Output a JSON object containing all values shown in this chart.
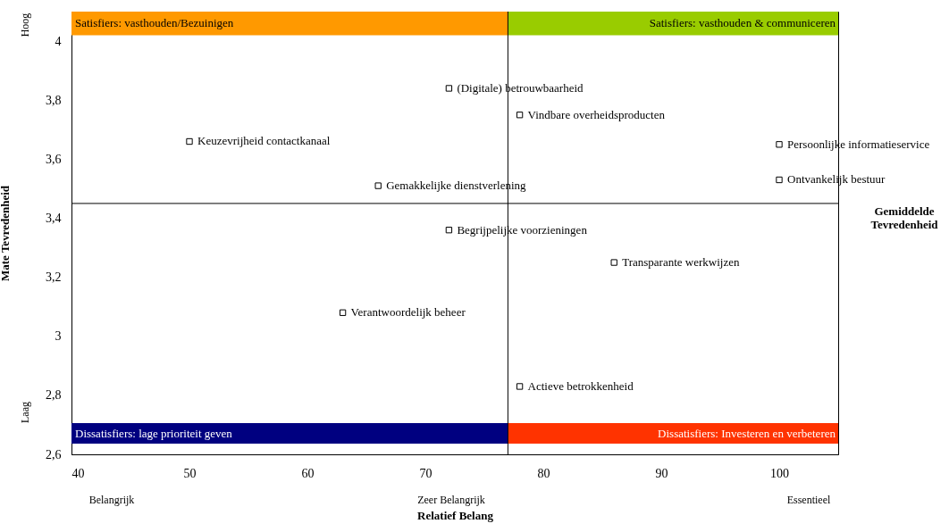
{
  "chart_data": {
    "type": "scatter",
    "xlabel": "Relatief Belang",
    "ylabel": "Mate Tevredenheid",
    "x": [
      72,
      78,
      50,
      100,
      100,
      66,
      72,
      86,
      63,
      78
    ],
    "values": [
      3.84,
      3.75,
      3.66,
      3.65,
      3.53,
      3.51,
      3.36,
      3.25,
      3.08,
      2.83
    ],
    "value_labels": [
      "(Digitale) betrouwbaarheid",
      "Vindbare overheidsproducten",
      "Keuzevrijheid contactkanaal",
      "Persoonlijke informatieservice",
      "Ontvankelijk bestuur",
      "Gemakkelijke dienstverlening",
      "Begrijpelijke voorzieningen",
      "Transparante werkwijzen",
      "Verantwoordelijk beheer",
      "Actieve betrokkenheid"
    ],
    "color": "#000000",
    "marker": "square",
    "xlim": [
      40,
      105
    ],
    "xticks": [
      40,
      50,
      60,
      70,
      80,
      90,
      100
    ],
    "ylim": [
      2.6,
      4.1
    ],
    "yticks": [
      {
        "value": 2.6,
        "label": "2,6"
      },
      {
        "value": 2.8,
        "label": "2,8"
      },
      3,
      {
        "value": 3.2,
        "label": "3,2"
      },
      {
        "value": 3.4,
        "label": "3,4"
      },
      {
        "value": 3.6,
        "label": "3,6"
      },
      {
        "value": 3.8,
        "label": "3,8"
      },
      4
    ],
    "grid": false,
    "ref_lines": [
      {
        "axis": "x",
        "value": 77,
        "label": null
      },
      {
        "axis": "y",
        "value": 3.45,
        "label": "Gemiddelde Tevredenheid"
      }
    ],
    "bands": [
      {
        "axis": "y",
        "from": 4.02,
        "to": 4.1,
        "label": "Satisfiers: vasthouden/Bezuinigen",
        "color": "#ff9900"
      },
      {
        "axis": "y",
        "from": 4.02,
        "to": 4.1,
        "label": "Satisfiers: vasthouden & communiceren",
        "color": "#99cc00"
      },
      {
        "axis": "y",
        "from": 2.636,
        "to": 2.706,
        "label": "Dissatisfiers: lage prioriteit geven",
        "color": "#000080"
      },
      {
        "axis": "y",
        "from": 2.636,
        "to": 2.706,
        "label": "Dissatisfiers: Investeren en verbeteren",
        "color": "#ff3300"
      }
    ],
    "annotations": [
      "Hoog",
      "Laag",
      "Belangrijk",
      "Zeer Belangrijk",
      "Essentieel"
    ]
  }
}
